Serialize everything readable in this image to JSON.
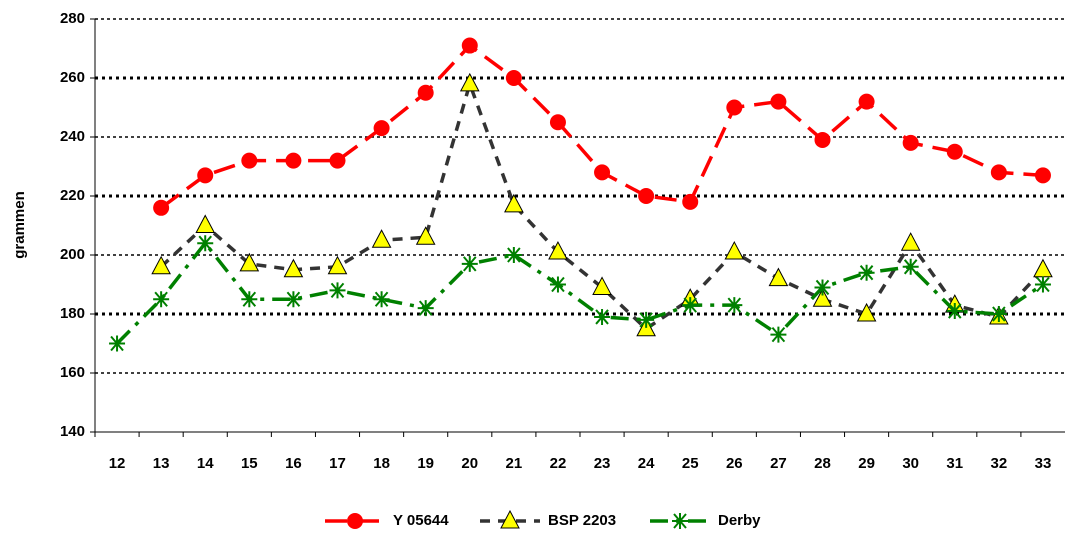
{
  "chart_data": {
    "type": "line",
    "y_label": "grammen",
    "categories": [
      "12",
      "13",
      "14",
      "15",
      "16",
      "17",
      "18",
      "19",
      "20",
      "21",
      "22",
      "23",
      "24",
      "25",
      "26",
      "27",
      "28",
      "29",
      "30",
      "31",
      "32",
      "33"
    ],
    "series": [
      {
        "name": "Y 05644",
        "color": "#ff0000",
        "marker": "circle",
        "values": [
          null,
          216,
          227,
          232,
          232,
          232,
          243,
          255,
          271,
          260,
          245,
          228,
          220,
          218,
          250,
          252,
          239,
          252,
          238,
          235,
          228,
          227
        ]
      },
      {
        "name": "BSP 2203",
        "color": "#333333",
        "marker": "triangle",
        "values": [
          null,
          196,
          210,
          197,
          195,
          196,
          205,
          206,
          258,
          217,
          201,
          189,
          175,
          185,
          201,
          192,
          185,
          180,
          204,
          183,
          179,
          195
        ]
      },
      {
        "name": "Derby",
        "color": "#008000",
        "marker": "asterisk",
        "values": [
          170,
          185,
          204,
          185,
          185,
          188,
          185,
          182,
          197,
          200,
          190,
          179,
          178,
          183,
          183,
          173,
          189,
          194,
          196,
          181,
          180,
          190
        ]
      }
    ],
    "ylim": [
      140,
      280
    ],
    "yticks": [
      140,
      160,
      180,
      200,
      220,
      240,
      260,
      280
    ],
    "grid": true,
    "legend": "bottom"
  }
}
